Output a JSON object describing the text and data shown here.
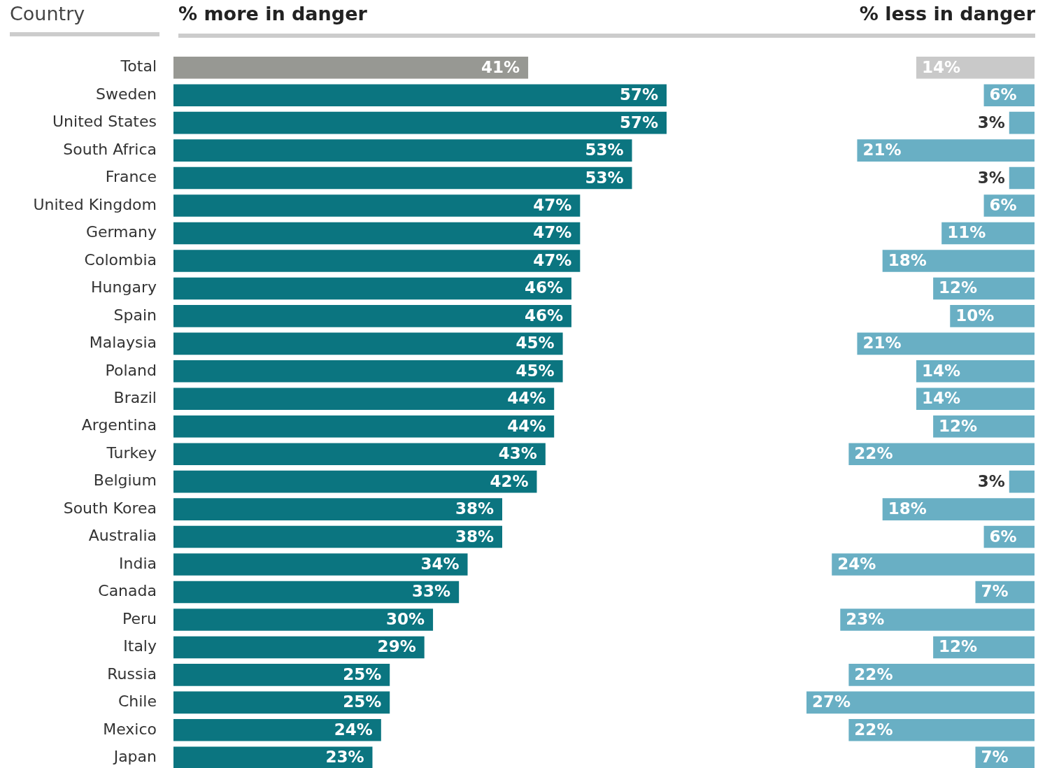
{
  "chart_data": [
    {
      "type": "bar",
      "orientation": "horizontal",
      "title": "% more in danger",
      "ylabel": "Country",
      "tick_labels": "y",
      "categories": [
        "Total",
        "Sweden",
        "United States",
        "South Africa",
        "France",
        "United Kingdom",
        "Germany",
        "Colombia",
        "Hungary",
        "Spain",
        "Malaysia",
        "Poland",
        "Brazil",
        "Argentina",
        "Turkey",
        "Belgium",
        "South Korea",
        "Australia",
        "India",
        "Canada",
        "Peru",
        "Italy",
        "Russia",
        "Chile",
        "Mexico",
        "Japan"
      ],
      "values": [
        41,
        57,
        57,
        53,
        53,
        47,
        47,
        47,
        46,
        46,
        45,
        45,
        44,
        44,
        43,
        42,
        38,
        38,
        34,
        33,
        30,
        29,
        25,
        25,
        24,
        23
      ],
      "value_labels": [
        "41%",
        "57%",
        "57%",
        "53%",
        "53%",
        "47%",
        "47%",
        "47%",
        "46%",
        "46%",
        "45%",
        "45%",
        "44%",
        "44%",
        "43%",
        "42%",
        "38%",
        "38%",
        "34%",
        "33%",
        "30%",
        "29%",
        "25%",
        "25%",
        "24%",
        "23%"
      ],
      "colors": [
        "#979893",
        "#0b7580",
        "#0b7580",
        "#0b7580",
        "#0b7580",
        "#0b7580",
        "#0b7580",
        "#0b7580",
        "#0b7580",
        "#0b7580",
        "#0b7580",
        "#0b7580",
        "#0b7580",
        "#0b7580",
        "#0b7580",
        "#0b7580",
        "#0b7580",
        "#0b7580",
        "#0b7580",
        "#0b7580",
        "#0b7580",
        "#0b7580",
        "#0b7580",
        "#0b7580",
        "#0b7580",
        "#0b7580"
      ]
    },
    {
      "type": "bar",
      "orientation": "horizontal",
      "title": "% less in danger",
      "tick_labels": false,
      "categories": [
        null,
        null,
        null,
        null,
        null,
        null,
        null,
        null,
        null,
        null,
        null,
        null,
        null,
        null,
        null,
        null,
        null,
        null,
        null,
        null,
        null,
        null,
        null,
        null,
        null,
        null
      ],
      "values": [
        14,
        6,
        3,
        21,
        3,
        6,
        11,
        18,
        12,
        10,
        21,
        14,
        14,
        12,
        22,
        3,
        18,
        6,
        24,
        7,
        23,
        12,
        22,
        27,
        22,
        7
      ],
      "value_labels": [
        "14%",
        "6%",
        "3%",
        "21%",
        "3%",
        "6%",
        "11%",
        "18%",
        "12%",
        "10%",
        "21%",
        "14%",
        "14%",
        "12%",
        "22%",
        "3%",
        "18%",
        "6%",
        "24%",
        "7%",
        "23%",
        "12%",
        "22%",
        "27%",
        "22%",
        "7%"
      ],
      "colors": [
        "#c9c9c9",
        "#69afc4",
        "#69afc4",
        "#69afc4",
        "#69afc4",
        "#69afc4",
        "#69afc4",
        "#69afc4",
        "#69afc4",
        "#69afc4",
        "#69afc4",
        "#69afc4",
        "#69afc4",
        "#69afc4",
        "#69afc4",
        "#69afc4",
        "#69afc4",
        "#69afc4",
        "#69afc4",
        "#69afc4",
        "#69afc4",
        "#69afc4",
        "#69afc4",
        "#69afc4",
        "#69afc4",
        "#69afc4"
      ]
    }
  ]
}
